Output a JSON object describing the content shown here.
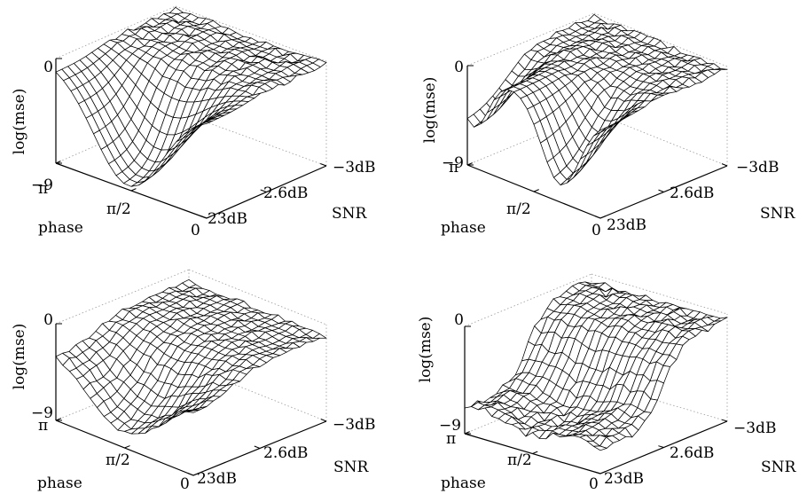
{
  "chart_data": [
    {
      "type": "surface",
      "zlabel": "log(mse)",
      "xlabel": "SNR",
      "ylabel": "phase",
      "z_ticks": [
        "0",
        "−9"
      ],
      "x_ticks": [
        "23dB",
        "2.6dB",
        "−3dB"
      ],
      "y_ticks": [
        "π",
        "π/2",
        "0"
      ],
      "zlim": [
        -9,
        0
      ],
      "grid_size": [
        20,
        20
      ],
      "surface": "bowl"
    },
    {
      "type": "surface",
      "zlabel": "log(mse)",
      "xlabel": "SNR",
      "ylabel": "phase",
      "z_ticks": [
        "0",
        "−9"
      ],
      "x_ticks": [
        "23dB",
        "2.6dB",
        "−3dB"
      ],
      "y_ticks": [
        "π",
        "π/2",
        "0"
      ],
      "zlim": [
        -9,
        0
      ],
      "grid_size": [
        20,
        20
      ],
      "surface": "ridge"
    },
    {
      "type": "surface",
      "zlabel": "log(mse)",
      "xlabel": "SNR",
      "ylabel": "phase",
      "z_ticks": [
        "0",
        "−9"
      ],
      "x_ticks": [
        "23dB",
        "2.6dB",
        "−3dB"
      ],
      "y_ticks": [
        "π",
        "π/2",
        "0"
      ],
      "zlim": [
        -9,
        0
      ],
      "grid_size": [
        20,
        20
      ],
      "surface": "shallow-bowl"
    },
    {
      "type": "surface",
      "zlabel": "log(mse)",
      "xlabel": "SNR",
      "ylabel": "phase",
      "z_ticks": [
        "0",
        "−9"
      ],
      "x_ticks": [
        "23dB",
        "2.6dB",
        "−3dB"
      ],
      "y_ticks": [
        "π",
        "π/2",
        "0"
      ],
      "zlim": [
        -9,
        0
      ],
      "grid_size": [
        20,
        20
      ],
      "surface": "flat-low"
    }
  ]
}
